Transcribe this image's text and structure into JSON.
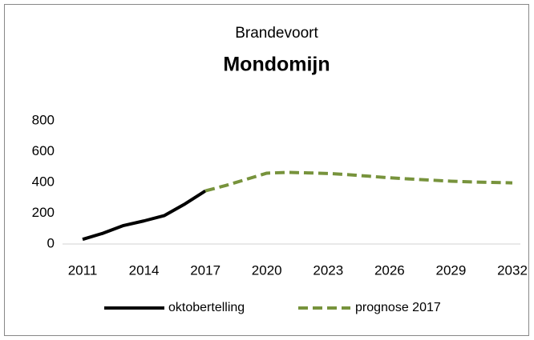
{
  "chart_data": {
    "type": "line",
    "subtitle": "Brandevoort",
    "title": "Mondomijn",
    "x": [
      2011,
      2012,
      2013,
      2014,
      2015,
      2016,
      2017,
      2018,
      2019,
      2020,
      2021,
      2022,
      2023,
      2024,
      2025,
      2026,
      2027,
      2028,
      2029,
      2030,
      2031,
      2032
    ],
    "series": [
      {
        "name": "oktobertelling",
        "color": "#000000",
        "dashed": false,
        "values": [
          30,
          70,
          120,
          150,
          185,
          260,
          345,
          null,
          null,
          null,
          null,
          null,
          null,
          null,
          null,
          null,
          null,
          null,
          null,
          null,
          null,
          null
        ]
      },
      {
        "name": "prognose 2017",
        "color": "#77933c",
        "dashed": true,
        "values": [
          null,
          null,
          null,
          null,
          null,
          null,
          345,
          380,
          420,
          460,
          465,
          462,
          458,
          450,
          440,
          430,
          422,
          415,
          408,
          403,
          400,
          397
        ]
      }
    ],
    "xlim": [
      2011,
      2032
    ],
    "xticks": [
      2011,
      2014,
      2017,
      2020,
      2023,
      2026,
      2029,
      2032
    ],
    "ylim": [
      0,
      800
    ],
    "yticks": [
      0,
      200,
      400,
      600,
      800
    ],
    "grid": false,
    "legend": "bottom"
  }
}
